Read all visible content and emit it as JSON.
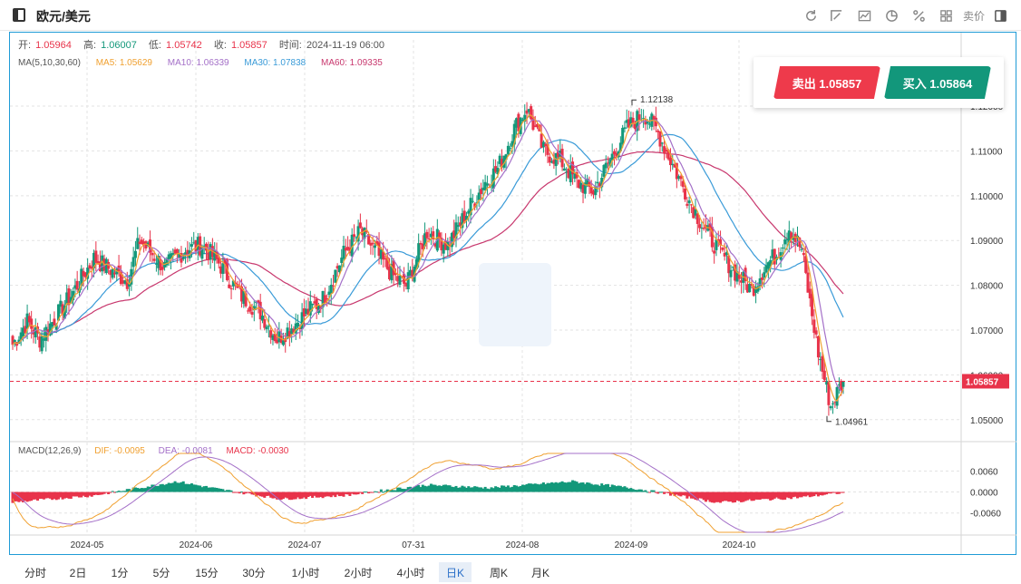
{
  "header": {
    "title": "欧元/美元",
    "tool_text": "卖价",
    "icons": [
      "refresh-icon",
      "draw-icon",
      "chart-type-icon",
      "pie-icon",
      "percent-icon",
      "grid-icon",
      "panel-icon"
    ]
  },
  "ohlc": {
    "open_label": "开:",
    "open": "1.05964",
    "high_label": "高:",
    "high": "1.06007",
    "low_label": "低:",
    "low": "1.05742",
    "close_label": "收:",
    "close": "1.05857",
    "time_label": "时间:",
    "time": "2024-11-19 06:00"
  },
  "ma": {
    "label": "MA(5,10,30,60)",
    "ma5": "MA5: 1.05629",
    "ma10": "MA10: 1.06339",
    "ma30": "MA30: 1.07838",
    "ma60": "MA60: 1.09335"
  },
  "macd": {
    "label": "MACD(12,26,9)",
    "dif": "DIF: -0.0095",
    "dea": "DEA: -0.0081",
    "macd": "MACD: -0.0030"
  },
  "trade": {
    "sell": "卖出 1.05857",
    "buy": "买入 1.05864"
  },
  "colors": {
    "up": "#13987a",
    "down": "#e8334a",
    "ma5": "#f0a030",
    "ma10": "#a470c8",
    "ma30": "#3a9bd8",
    "ma60": "#c8386e",
    "frame": "#1f9bd6"
  },
  "periods": [
    "分时",
    "2日",
    "1分",
    "5分",
    "15分",
    "30分",
    "1小时",
    "2小时",
    "4小时",
    "日K",
    "周K",
    "月K"
  ],
  "active_period": "日K",
  "chart_data": {
    "type": "candlestick",
    "price_axis": {
      "ticks": [
        "1.12000",
        "1.11000",
        "1.10000",
        "1.09000",
        "1.08000",
        "1.07000",
        "1.06000",
        "1.05000"
      ],
      "range": [
        1.0455,
        1.1275
      ]
    },
    "macd_axis": {
      "ticks": [
        "0.0060",
        "0.0000",
        "-0.0060"
      ],
      "range": [
        -0.0115,
        0.011
      ]
    },
    "x_labels": [
      "2024-05",
      "2024-06",
      "2024-07",
      "07-31",
      "2024-08",
      "2024-09",
      "2024-10"
    ],
    "current_price": "1.05857",
    "high_marker": "1.12138",
    "low_marker": "1.04961",
    "close_path": [
      [
        1.066,
        40
      ],
      [
        1.072,
        8
      ],
      [
        1.068,
        6
      ],
      [
        1.077,
        14
      ],
      [
        1.086,
        12
      ],
      [
        1.081,
        16
      ],
      [
        1.09,
        6
      ],
      [
        1.084,
        12
      ],
      [
        1.088,
        10
      ],
      [
        1.089,
        8
      ],
      [
        1.085,
        8
      ],
      [
        1.078,
        10
      ],
      [
        1.074,
        10
      ],
      [
        1.068,
        8
      ],
      [
        1.072,
        10
      ],
      [
        1.077,
        12
      ],
      [
        1.087,
        10
      ],
      [
        1.092,
        8
      ],
      [
        1.087,
        8
      ],
      [
        1.082,
        8
      ],
      [
        1.08,
        6
      ],
      [
        1.092,
        10
      ],
      [
        1.089,
        10
      ],
      [
        1.097,
        10
      ],
      [
        1.103,
        8
      ],
      [
        1.106,
        6
      ],
      [
        1.115,
        8
      ],
      [
        1.1195,
        6
      ],
      [
        1.11,
        8
      ],
      [
        1.108,
        8
      ],
      [
        1.103,
        8
      ],
      [
        1.101,
        8
      ],
      [
        1.108,
        8
      ],
      [
        1.115,
        8
      ],
      [
        1.1185,
        8
      ],
      [
        1.115,
        6
      ],
      [
        1.107,
        8
      ],
      [
        1.099,
        8
      ],
      [
        1.092,
        8
      ],
      [
        1.088,
        6
      ],
      [
        1.083,
        8
      ],
      [
        1.079,
        8
      ],
      [
        1.084,
        6
      ],
      [
        1.087,
        6
      ],
      [
        1.093,
        6
      ],
      [
        1.088,
        6
      ],
      [
        1.076,
        4
      ],
      [
        1.065,
        4
      ],
      [
        1.053,
        6
      ],
      [
        1.057,
        4
      ],
      [
        1.0586,
        2
      ]
    ],
    "macd_path": [
      [
        -0.003,
        40
      ],
      [
        -0.001,
        40
      ],
      [
        0.003,
        40
      ],
      [
        0.0008,
        20
      ],
      [
        -0.002,
        30
      ],
      [
        -0.001,
        30
      ],
      [
        0.002,
        40
      ],
      [
        0.0012,
        30
      ],
      [
        0.003,
        40
      ],
      [
        0.001,
        30
      ],
      [
        -0.003,
        40
      ],
      [
        -0.0015,
        40
      ],
      [
        0.0005,
        30
      ],
      [
        0.002,
        30
      ],
      [
        0.001,
        30
      ],
      [
        -0.002,
        40
      ],
      [
        -0.005,
        40
      ],
      [
        -0.004,
        30
      ],
      [
        -0.001,
        30
      ],
      [
        0.0025,
        40
      ],
      [
        -0.003,
        16
      ]
    ],
    "series": [
      {
        "name": "MA5",
        "color": "#f0a030"
      },
      {
        "name": "MA10",
        "color": "#a470c8"
      },
      {
        "name": "MA30",
        "color": "#3a9bd8"
      },
      {
        "name": "MA60",
        "color": "#c8386e"
      },
      {
        "name": "DIF",
        "color": "#f0a030"
      },
      {
        "name": "DEA",
        "color": "#a470c8"
      },
      {
        "name": "MACD",
        "color": "#e8334a"
      }
    ],
    "grid": true
  }
}
